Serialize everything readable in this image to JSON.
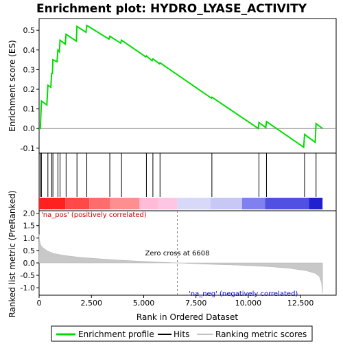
{
  "chart_data": {
    "type": "line",
    "title": "Enrichment plot: HYDRO_LYASE_ACTIVITY",
    "x_label": "Rank in Ordered Dataset",
    "x_ticks": [
      "0",
      "2,500",
      "5,000",
      "7,500",
      "10,000",
      "12,500"
    ],
    "x_range": [
      0,
      14200
    ],
    "es_panel": {
      "ylabel": "Enrichment score (ES)",
      "y_ticks": [
        "-0.1",
        "0.0",
        "0.1",
        "0.2",
        "0.3",
        "0.4",
        "0.5"
      ],
      "y_range": [
        -0.125,
        0.56
      ],
      "profile": [
        [
          0,
          0.0
        ],
        [
          60,
          0.0
        ],
        [
          110,
          0.14
        ],
        [
          370,
          0.12
        ],
        [
          420,
          0.22
        ],
        [
          560,
          0.21
        ],
        [
          600,
          0.28
        ],
        [
          640,
          0.28
        ],
        [
          660,
          0.35
        ],
        [
          860,
          0.34
        ],
        [
          900,
          0.4
        ],
        [
          970,
          0.39
        ],
        [
          1000,
          0.45
        ],
        [
          1250,
          0.43
        ],
        [
          1290,
          0.48
        ],
        [
          1780,
          0.445
        ],
        [
          1810,
          0.52
        ],
        [
          2240,
          0.49
        ],
        [
          2280,
          0.525
        ],
        [
          3340,
          0.455
        ],
        [
          3380,
          0.47
        ],
        [
          3900,
          0.435
        ],
        [
          3940,
          0.45
        ],
        [
          5100,
          0.365
        ],
        [
          5130,
          0.37
        ],
        [
          5400,
          0.345
        ],
        [
          5440,
          0.355
        ],
        [
          5750,
          0.33
        ],
        [
          5780,
          0.335
        ],
        [
          8230,
          0.155
        ],
        [
          8260,
          0.16
        ],
        [
          10480,
          0.0
        ],
        [
          10510,
          0.03
        ],
        [
          10840,
          0.005
        ],
        [
          10870,
          0.035
        ],
        [
          12650,
          -0.095
        ],
        [
          12690,
          -0.03
        ],
        [
          13200,
          -0.07
        ],
        [
          13240,
          0.025
        ],
        [
          13550,
          0.0
        ]
      ],
      "hits": [
        60,
        110,
        420,
        600,
        660,
        900,
        1000,
        1290,
        1810,
        2280,
        3380,
        3940,
        5130,
        5440,
        5780,
        8260,
        10510,
        10870,
        12690,
        13240
      ]
    },
    "metric_panel": {
      "ylabel": "Ranked list metric (PreRanked)",
      "y_ticks": [
        "-1.0",
        "-0.5",
        "0.0",
        "0.5",
        "1.0",
        "1.5",
        "2.0"
      ],
      "y_range": [
        -1.3,
        2.1
      ],
      "curve": [
        [
          0,
          1.15
        ],
        [
          20,
          0.9
        ],
        [
          80,
          0.72
        ],
        [
          200,
          0.6
        ],
        [
          400,
          0.48
        ],
        [
          700,
          0.38
        ],
        [
          1200,
          0.3
        ],
        [
          2000,
          0.22
        ],
        [
          3500,
          0.13
        ],
        [
          5000,
          0.06
        ],
        [
          6608,
          0.0
        ],
        [
          8000,
          -0.05
        ],
        [
          9500,
          -0.09
        ],
        [
          11000,
          -0.15
        ],
        [
          12000,
          -0.22
        ],
        [
          12800,
          -0.32
        ],
        [
          13200,
          -0.42
        ],
        [
          13400,
          -0.55
        ],
        [
          13500,
          -0.8
        ],
        [
          13550,
          -1.22
        ]
      ],
      "zero_cross_label": "Zero cross at 6608",
      "zero_cross_rank": 6608,
      "na_pos_label": "'na_pos' (positively correlated)",
      "na_neg_label": "'na_neg' (negatively correlated)"
    },
    "colorbar_segments": [
      {
        "from": 0,
        "to": 1250,
        "color": "#ff2020"
      },
      {
        "from": 1250,
        "to": 2400,
        "color": "#ff4848"
      },
      {
        "from": 2400,
        "to": 3400,
        "color": "#ff6c6c"
      },
      {
        "from": 3400,
        "to": 4800,
        "color": "#ff8f8f"
      },
      {
        "from": 4800,
        "to": 5700,
        "color": "#ffbcd8"
      },
      {
        "from": 5700,
        "to": 6600,
        "color": "#ffc6e4"
      },
      {
        "from": 6600,
        "to": 8200,
        "color": "#d8d8f8"
      },
      {
        "from": 8200,
        "to": 9700,
        "color": "#c8c8f6"
      },
      {
        "from": 9700,
        "to": 10800,
        "color": "#8080ee"
      },
      {
        "from": 10800,
        "to": 12900,
        "color": "#5050e2"
      },
      {
        "from": 12900,
        "to": 13550,
        "color": "#2020d0"
      }
    ],
    "legend": {
      "items": [
        "Enrichment profile",
        "Hits",
        "Ranking metric scores"
      ],
      "colors": [
        "#00ff00",
        "#000000",
        "#c0c0c0"
      ]
    }
  }
}
